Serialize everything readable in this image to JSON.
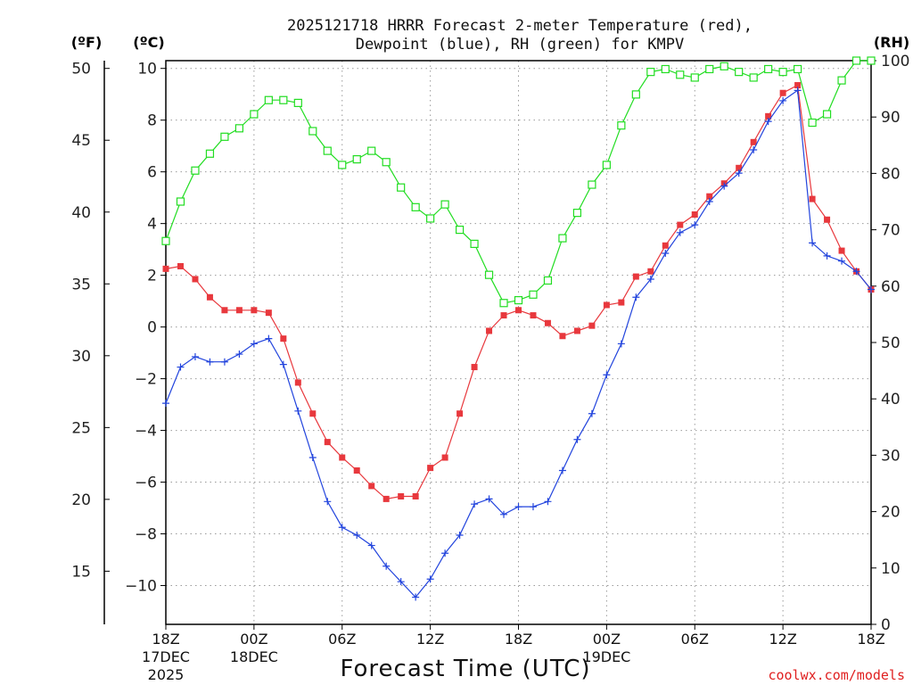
{
  "chart_data": {
    "type": "line",
    "title_lines": [
      "2025121718 HRRR Forecast 2-meter Temperature (red),",
      "Dewpoint (blue), RH (green) for KMPV"
    ],
    "xlabel": "Forecast Time (UTC)",
    "credit": "coolwx.com/models",
    "left_unit_f": "(ºF)",
    "left_unit_c": "(ºC)",
    "right_unit": "(RH)",
    "x_range_hours": [
      0,
      48
    ],
    "ylim_c": [
      -11.5,
      10.3
    ],
    "ylim_rh": [
      0,
      100
    ],
    "f_ticks": [
      "15",
      "20",
      "25",
      "30",
      "35",
      "40",
      "45",
      "50"
    ],
    "c_ticks": [
      "−10",
      "−8",
      "−6",
      "−4",
      "−2",
      "0",
      "2",
      "4",
      "6",
      "8",
      "10"
    ],
    "rh_ticks": [
      "0",
      "10",
      "20",
      "30",
      "40",
      "50",
      "60",
      "70",
      "80",
      "90",
      "100"
    ],
    "x_ticks": [
      {
        "hour": 0,
        "lines": [
          "18Z",
          "17DEC",
          "2025"
        ]
      },
      {
        "hour": 6,
        "lines": [
          "00Z",
          "18DEC"
        ]
      },
      {
        "hour": 12,
        "lines": [
          "06Z"
        ]
      },
      {
        "hour": 18,
        "lines": [
          "12Z"
        ]
      },
      {
        "hour": 24,
        "lines": [
          "18Z"
        ]
      },
      {
        "hour": 30,
        "lines": [
          "00Z",
          "19DEC"
        ]
      },
      {
        "hour": 36,
        "lines": [
          "06Z"
        ]
      },
      {
        "hour": 42,
        "lines": [
          "12Z"
        ]
      },
      {
        "hour": 48,
        "lines": [
          "18Z"
        ]
      }
    ],
    "series": [
      {
        "name": "Temperature (°C)",
        "color": "#e8383d",
        "marker": "filled-square",
        "axis": "celsius",
        "values": [
          2.25,
          2.35,
          1.85,
          1.15,
          0.65,
          0.65,
          0.65,
          0.55,
          -0.45,
          -2.15,
          -3.35,
          -4.45,
          -5.05,
          -5.55,
          -6.15,
          -6.65,
          -6.55,
          -6.55,
          -5.45,
          -5.05,
          -3.35,
          -1.55,
          -0.15,
          0.45,
          0.65,
          0.45,
          0.15,
          -0.35,
          -0.15,
          0.05,
          0.85,
          0.95,
          1.95,
          2.15,
          3.15,
          3.95,
          4.35,
          5.05,
          5.55,
          6.15,
          7.15,
          8.15,
          9.05,
          9.35,
          4.95,
          4.15,
          2.95,
          2.15,
          1.45
        ]
      },
      {
        "name": "Dewpoint (°C)",
        "color": "#2244dd",
        "marker": "plus",
        "axis": "celsius",
        "values": [
          -2.95,
          -1.55,
          -1.15,
          -1.35,
          -1.35,
          -1.05,
          -0.65,
          -0.45,
          -1.45,
          -3.25,
          -5.05,
          -6.75,
          -7.75,
          -8.05,
          -8.45,
          -9.25,
          -9.85,
          -10.45,
          -9.75,
          -8.75,
          -8.05,
          -6.85,
          -6.65,
          -7.25,
          -6.95,
          -6.95,
          -6.75,
          -5.55,
          -4.35,
          -3.35,
          -1.85,
          -0.65,
          1.15,
          1.85,
          2.85,
          3.65,
          3.95,
          4.85,
          5.45,
          5.95,
          6.85,
          7.95,
          8.75,
          9.15,
          3.25,
          2.75,
          2.55,
          2.15,
          1.45
        ]
      },
      {
        "name": "RH (%)",
        "color": "#22dd22",
        "marker": "open-square",
        "axis": "rh",
        "values": [
          68,
          75,
          80.5,
          83.5,
          86.5,
          88,
          90.5,
          93,
          93,
          92.5,
          87.5,
          84,
          81.5,
          82.5,
          84,
          82,
          77.5,
          74,
          72,
          74.5,
          70,
          67.5,
          62,
          57,
          57.5,
          58.5,
          61,
          68.5,
          73,
          78,
          81.5,
          88.5,
          94,
          98,
          98.5,
          97.5,
          97,
          98.5,
          99,
          98,
          97,
          98.5,
          98,
          98.5,
          89,
          90.5,
          96.5,
          100,
          100
        ]
      }
    ]
  }
}
